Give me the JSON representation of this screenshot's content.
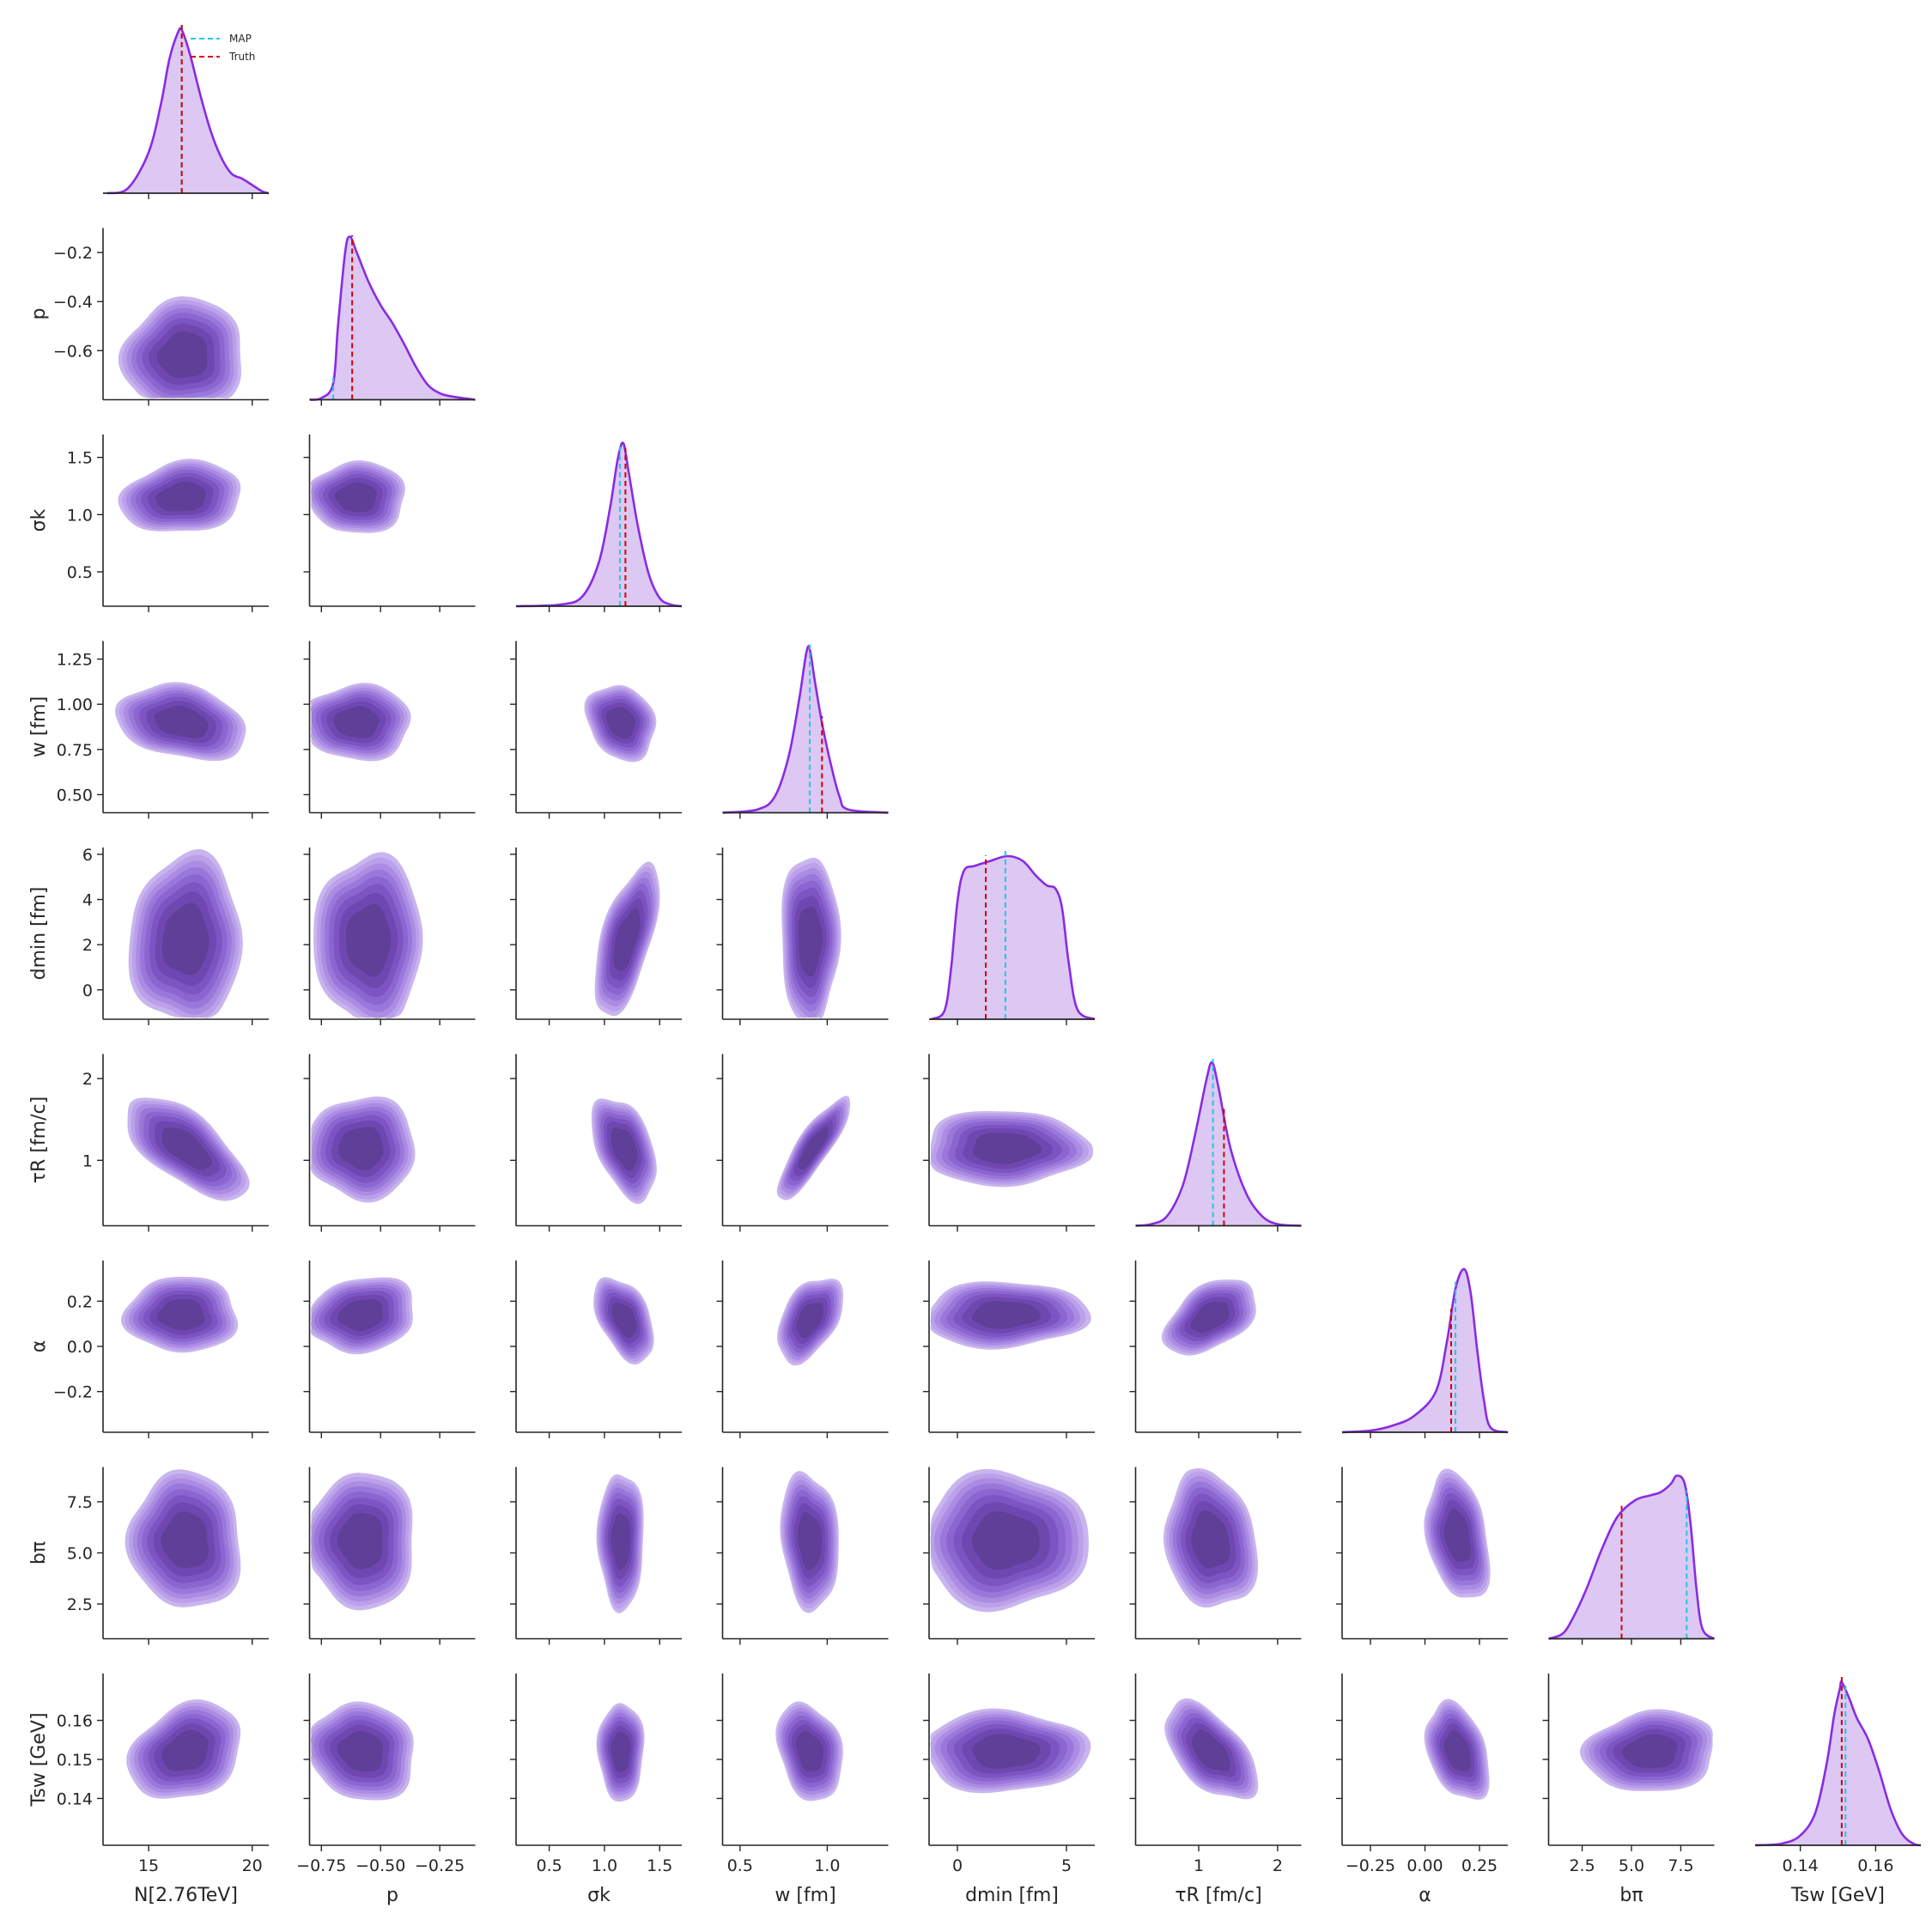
{
  "chart_data": {
    "type": "corner",
    "colors": {
      "kde": "#8a2be2",
      "fill": "#dcc8f3",
      "map": "#1ec8e6",
      "truth": "#d40000",
      "contour_levels": [
        "#c9b5ee",
        "#bba0ea",
        "#ab8ce3",
        "#9a78db",
        "#8c66d0",
        "#7d55c3",
        "#6e48b0",
        "#5f3f98"
      ]
    },
    "legend": {
      "position": "top-right of first panel",
      "entries": [
        "MAP",
        "Truth"
      ]
    },
    "params": [
      {
        "label": "N[2.76TeV]",
        "range": [
          12.8,
          20.8
        ],
        "ticks": [
          15,
          20
        ],
        "tick_labels": [
          "15",
          "20"
        ],
        "map": 16.6,
        "truth": 16.6,
        "density": [
          [
            13.0,
            0
          ],
          [
            14.0,
            0.03
          ],
          [
            15.0,
            0.25
          ],
          [
            15.6,
            0.55
          ],
          [
            16.0,
            0.82
          ],
          [
            16.4,
            0.98
          ],
          [
            16.6,
            1.0
          ],
          [
            17.0,
            0.85
          ],
          [
            17.5,
            0.6
          ],
          [
            18.0,
            0.38
          ],
          [
            18.5,
            0.22
          ],
          [
            19.0,
            0.12
          ],
          [
            19.5,
            0.09
          ],
          [
            20.0,
            0.05
          ],
          [
            20.5,
            0.01
          ],
          [
            20.8,
            0
          ]
        ]
      },
      {
        "label": "p",
        "range": [
          -0.8,
          -0.1
        ],
        "ticks": [
          -0.75,
          -0.5,
          -0.25
        ],
        "tick_labels": [
          "−0.75",
          "−0.50",
          "−0.25"
        ],
        "ticks_y": [
          -0.6,
          -0.4,
          -0.2
        ],
        "tick_labels_y": [
          "−0.6",
          "−0.4",
          "−0.2"
        ],
        "map": -0.7,
        "truth": -0.62,
        "density": [
          [
            -0.8,
            0
          ],
          [
            -0.75,
            0.01
          ],
          [
            -0.7,
            0.1
          ],
          [
            -0.68,
            0.45
          ],
          [
            -0.65,
            0.9
          ],
          [
            -0.63,
            1.0
          ],
          [
            -0.6,
            0.9
          ],
          [
            -0.55,
            0.72
          ],
          [
            -0.5,
            0.58
          ],
          [
            -0.45,
            0.47
          ],
          [
            -0.4,
            0.34
          ],
          [
            -0.35,
            0.2
          ],
          [
            -0.3,
            0.09
          ],
          [
            -0.25,
            0.04
          ],
          [
            -0.2,
            0.02
          ],
          [
            -0.1,
            0
          ]
        ]
      },
      {
        "label": "σk",
        "range": [
          0.2,
          1.7
        ],
        "ticks": [
          0.5,
          1.0,
          1.5
        ],
        "tick_labels": [
          "0.5",
          "1.0",
          "1.5"
        ],
        "map": 1.14,
        "truth": 1.19,
        "density": [
          [
            0.2,
            0
          ],
          [
            0.6,
            0.01
          ],
          [
            0.8,
            0.06
          ],
          [
            0.95,
            0.27
          ],
          [
            1.05,
            0.6
          ],
          [
            1.12,
            0.9
          ],
          [
            1.17,
            1.0
          ],
          [
            1.22,
            0.82
          ],
          [
            1.3,
            0.5
          ],
          [
            1.4,
            0.2
          ],
          [
            1.5,
            0.05
          ],
          [
            1.6,
            0.01
          ],
          [
            1.7,
            0
          ]
        ]
      },
      {
        "label": "w [fm]",
        "range": [
          0.4,
          1.35
        ],
        "ticks": [
          0.5,
          1.0
        ],
        "tick_labels": [
          "0.5",
          "1.0"
        ],
        "ticks_y": [
          0.5,
          0.75,
          1.0,
          1.25
        ],
        "tick_labels_y": [
          "0.50",
          "0.75",
          "1.00",
          "1.25"
        ],
        "map": 0.9,
        "truth": 0.97,
        "density": [
          [
            0.4,
            0
          ],
          [
            0.6,
            0.02
          ],
          [
            0.7,
            0.1
          ],
          [
            0.78,
            0.35
          ],
          [
            0.84,
            0.7
          ],
          [
            0.88,
            0.98
          ],
          [
            0.9,
            1.0
          ],
          [
            0.93,
            0.8
          ],
          [
            0.97,
            0.55
          ],
          [
            1.02,
            0.3
          ],
          [
            1.07,
            0.1
          ],
          [
            1.12,
            0.02
          ],
          [
            1.35,
            0
          ]
        ]
      },
      {
        "label": "dmin [fm]",
        "range": [
          -1.3,
          6.3
        ],
        "ticks": [
          0,
          5
        ],
        "tick_labels": [
          "0",
          "5"
        ],
        "ticks_y": [
          0,
          2,
          4,
          6
        ],
        "tick_labels_y": [
          "0",
          "2",
          "4",
          "6"
        ],
        "map": 2.2,
        "truth": 1.3,
        "density": [
          [
            -1.2,
            0
          ],
          [
            -0.6,
            0.05
          ],
          [
            -0.3,
            0.3
          ],
          [
            0,
            0.72
          ],
          [
            0.3,
            0.91
          ],
          [
            0.8,
            0.94
          ],
          [
            1.5,
            0.97
          ],
          [
            2.3,
            1.0
          ],
          [
            3.0,
            0.97
          ],
          [
            3.6,
            0.88
          ],
          [
            4.1,
            0.82
          ],
          [
            4.5,
            0.8
          ],
          [
            4.8,
            0.68
          ],
          [
            5.1,
            0.35
          ],
          [
            5.5,
            0.06
          ],
          [
            6.3,
            0
          ]
        ]
      },
      {
        "label": "τR [fm/c]",
        "range": [
          0.2,
          2.3
        ],
        "ticks": [
          1,
          2
        ],
        "tick_labels": [
          "1",
          "2"
        ],
        "ticks_y": [
          1,
          2
        ],
        "tick_labels_y": [
          "1",
          "2"
        ],
        "map": 1.18,
        "truth": 1.32,
        "density": [
          [
            0.2,
            0
          ],
          [
            0.4,
            0.01
          ],
          [
            0.6,
            0.06
          ],
          [
            0.8,
            0.25
          ],
          [
            0.95,
            0.55
          ],
          [
            1.1,
            0.9
          ],
          [
            1.17,
            1.0
          ],
          [
            1.25,
            0.85
          ],
          [
            1.4,
            0.48
          ],
          [
            1.6,
            0.2
          ],
          [
            1.8,
            0.06
          ],
          [
            2.0,
            0.01
          ],
          [
            2.3,
            0
          ]
        ]
      },
      {
        "label": "α",
        "range": [
          -0.38,
          0.38
        ],
        "ticks": [
          -0.25,
          0,
          0.25
        ],
        "tick_labels": [
          "−0.25",
          "0.00",
          "0.25"
        ],
        "ticks_y": [
          -0.2,
          0,
          0.2
        ],
        "tick_labels_y": [
          "−0.2",
          "0.0",
          "0.2"
        ],
        "map": 0.14,
        "truth": 0.12,
        "density": [
          [
            -0.38,
            0
          ],
          [
            -0.25,
            0.01
          ],
          [
            -0.15,
            0.04
          ],
          [
            -0.05,
            0.1
          ],
          [
            0.05,
            0.25
          ],
          [
            0.1,
            0.55
          ],
          [
            0.14,
            0.88
          ],
          [
            0.18,
            1.0
          ],
          [
            0.21,
            0.85
          ],
          [
            0.24,
            0.5
          ],
          [
            0.27,
            0.2
          ],
          [
            0.3,
            0.03
          ],
          [
            0.38,
            0
          ]
        ]
      },
      {
        "label": "bπ",
        "range": [
          0.8,
          9.2
        ],
        "ticks": [
          2.5,
          5.0,
          7.5
        ],
        "tick_labels": [
          "2.5",
          "5.0",
          "7.5"
        ],
        "map": 7.8,
        "truth": 4.5,
        "density": [
          [
            0.8,
            0
          ],
          [
            1.5,
            0.03
          ],
          [
            2.0,
            0.12
          ],
          [
            2.7,
            0.3
          ],
          [
            3.5,
            0.55
          ],
          [
            4.3,
            0.75
          ],
          [
            5.2,
            0.85
          ],
          [
            6.0,
            0.88
          ],
          [
            6.5,
            0.9
          ],
          [
            7.0,
            0.95
          ],
          [
            7.3,
            1.0
          ],
          [
            7.7,
            0.95
          ],
          [
            8.0,
            0.7
          ],
          [
            8.3,
            0.3
          ],
          [
            8.6,
            0.06
          ],
          [
            9.2,
            0
          ]
        ]
      },
      {
        "label": "Tsw [GeV]",
        "range": [
          0.128,
          0.172
        ],
        "ticks": [
          0.14,
          0.16
        ],
        "tick_labels": [
          "0.14",
          "0.16"
        ],
        "ticks_y": [
          0.14,
          0.15,
          0.16
        ],
        "tick_labels_y": [
          "0.14",
          "0.15",
          "0.16"
        ],
        "map": 0.152,
        "truth": 0.151,
        "density": [
          [
            0.128,
            0
          ],
          [
            0.135,
            0.01
          ],
          [
            0.14,
            0.06
          ],
          [
            0.144,
            0.2
          ],
          [
            0.147,
            0.5
          ],
          [
            0.149,
            0.8
          ],
          [
            0.1505,
            0.96
          ],
          [
            0.151,
            1.0
          ],
          [
            0.153,
            0.9
          ],
          [
            0.155,
            0.78
          ],
          [
            0.158,
            0.65
          ],
          [
            0.161,
            0.45
          ],
          [
            0.164,
            0.22
          ],
          [
            0.167,
            0.07
          ],
          [
            0.17,
            0.01
          ],
          [
            0.172,
            0
          ]
        ]
      }
    ],
    "pairs": [
      {
        "x": 0,
        "y": 1,
        "cx": 16.7,
        "cy": -0.62,
        "sx": 1.4,
        "sy": 0.11,
        "rho": 0.05
      },
      {
        "x": 0,
        "y": 2,
        "cx": 16.6,
        "cy": 1.15,
        "sx": 1.4,
        "sy": 0.15,
        "rho": 0.15
      },
      {
        "x": 1,
        "y": 2,
        "cx": -0.6,
        "cy": 1.15,
        "sx": 0.1,
        "sy": 0.15,
        "rho": 0.0
      },
      {
        "x": 0,
        "y": 3,
        "cx": 16.6,
        "cy": 0.9,
        "sx": 1.5,
        "sy": 0.1,
        "rho": -0.25
      },
      {
        "x": 1,
        "y": 3,
        "cx": -0.6,
        "cy": 0.9,
        "sx": 0.11,
        "sy": 0.1,
        "rho": 0.0
      },
      {
        "x": 2,
        "y": 3,
        "cx": 1.15,
        "cy": 0.9,
        "sx": 0.15,
        "sy": 0.1,
        "rho": -0.2
      },
      {
        "x": 0,
        "y": 4,
        "cx": 16.8,
        "cy": 2.2,
        "sx": 1.3,
        "sy": 1.8,
        "rho": 0.05
      },
      {
        "x": 1,
        "y": 4,
        "cx": -0.55,
        "cy": 2.2,
        "sx": 0.11,
        "sy": 1.8,
        "rho": 0.0
      },
      {
        "x": 2,
        "y": 4,
        "cx": 1.2,
        "cy": 2.2,
        "sx": 0.14,
        "sy": 1.6,
        "rho": 0.6
      },
      {
        "x": 3,
        "y": 4,
        "cx": 0.9,
        "cy": 2.2,
        "sx": 0.08,
        "sy": 1.8,
        "rho": 0.0
      },
      {
        "x": 0,
        "y": 5,
        "cx": 16.8,
        "cy": 1.15,
        "sx": 1.4,
        "sy": 0.3,
        "rho": -0.65
      },
      {
        "x": 1,
        "y": 5,
        "cx": -0.58,
        "cy": 1.15,
        "sx": 0.11,
        "sy": 0.3,
        "rho": 0.0
      },
      {
        "x": 2,
        "y": 5,
        "cx": 1.18,
        "cy": 1.15,
        "sx": 0.14,
        "sy": 0.3,
        "rho": -0.45
      },
      {
        "x": 3,
        "y": 5,
        "cx": 0.92,
        "cy": 1.15,
        "sx": 0.1,
        "sy": 0.3,
        "rho": 0.85
      },
      {
        "x": 4,
        "y": 5,
        "cx": 2.2,
        "cy": 1.15,
        "sx": 1.8,
        "sy": 0.22,
        "rho": 0.0
      },
      {
        "x": 0,
        "y": 6,
        "cx": 16.6,
        "cy": 0.14,
        "sx": 1.3,
        "sy": 0.08,
        "rho": 0.0
      },
      {
        "x": 1,
        "y": 6,
        "cx": -0.58,
        "cy": 0.14,
        "sx": 0.11,
        "sy": 0.08,
        "rho": 0.15
      },
      {
        "x": 2,
        "y": 6,
        "cx": 1.18,
        "cy": 0.12,
        "sx": 0.13,
        "sy": 0.09,
        "rho": -0.45
      },
      {
        "x": 3,
        "y": 6,
        "cx": 0.9,
        "cy": 0.12,
        "sx": 0.09,
        "sy": 0.09,
        "rho": 0.45
      },
      {
        "x": 4,
        "y": 6,
        "cx": 2.2,
        "cy": 0.14,
        "sx": 1.8,
        "sy": 0.07,
        "rho": 0.05
      },
      {
        "x": 5,
        "y": 6,
        "cx": 1.15,
        "cy": 0.13,
        "sx": 0.28,
        "sy": 0.08,
        "rho": 0.45
      },
      {
        "x": 0,
        "y": 7,
        "cx": 16.8,
        "cy": 5.6,
        "sx": 1.3,
        "sy": 1.6,
        "rho": -0.05
      },
      {
        "x": 1,
        "y": 7,
        "cx": -0.58,
        "cy": 5.6,
        "sx": 0.11,
        "sy": 1.6,
        "rho": 0.0
      },
      {
        "x": 2,
        "y": 7,
        "cx": 1.15,
        "cy": 5.6,
        "sx": 0.1,
        "sy": 1.6,
        "rho": 0.0
      },
      {
        "x": 3,
        "y": 7,
        "cx": 0.9,
        "cy": 5.6,
        "sx": 0.08,
        "sy": 1.6,
        "rho": -0.15
      },
      {
        "x": 4,
        "y": 7,
        "cx": 2.2,
        "cy": 5.6,
        "sx": 1.8,
        "sy": 1.6,
        "rho": 0.0
      },
      {
        "x": 5,
        "y": 7,
        "cx": 1.15,
        "cy": 5.6,
        "sx": 0.28,
        "sy": 1.6,
        "rho": -0.15
      },
      {
        "x": 6,
        "y": 7,
        "cx": 0.15,
        "cy": 5.8,
        "sx": 0.07,
        "sy": 1.5,
        "rho": -0.3
      },
      {
        "x": 0,
        "y": 8,
        "cx": 16.8,
        "cy": 0.152,
        "sx": 1.3,
        "sy": 0.006,
        "rho": 0.25
      },
      {
        "x": 1,
        "y": 8,
        "cx": -0.58,
        "cy": 0.152,
        "sx": 0.11,
        "sy": 0.006,
        "rho": -0.1
      },
      {
        "x": 2,
        "y": 8,
        "cx": 1.15,
        "cy": 0.152,
        "sx": 0.1,
        "sy": 0.006,
        "rho": 0.0
      },
      {
        "x": 3,
        "y": 8,
        "cx": 0.9,
        "cy": 0.152,
        "sx": 0.09,
        "sy": 0.006,
        "rho": -0.25
      },
      {
        "x": 4,
        "y": 8,
        "cx": 2.2,
        "cy": 0.152,
        "sx": 1.8,
        "sy": 0.005,
        "rho": 0.0
      },
      {
        "x": 5,
        "y": 8,
        "cx": 1.15,
        "cy": 0.152,
        "sx": 0.28,
        "sy": 0.006,
        "rho": -0.55
      },
      {
        "x": 6,
        "y": 8,
        "cx": 0.15,
        "cy": 0.152,
        "sx": 0.07,
        "sy": 0.006,
        "rho": -0.35
      },
      {
        "x": 7,
        "y": 8,
        "cx": 6.0,
        "cy": 0.152,
        "sx": 1.6,
        "sy": 0.005,
        "rho": 0.1
      }
    ]
  }
}
